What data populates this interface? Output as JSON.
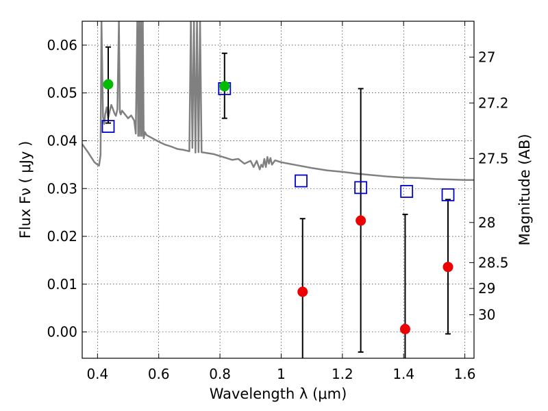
{
  "chart_data": {
    "type": "scatter",
    "xlabel": "Wavelength  λ (μm)",
    "ylabel": "Flux  Fν ( μJy )",
    "y2label": "Magnitude (AB)",
    "xlim": [
      0.35,
      1.63
    ],
    "ylim": [
      -0.0055,
      0.065
    ],
    "grid": true,
    "x_ticks": [
      0.4,
      0.6,
      0.8,
      1.0,
      1.2,
      1.4,
      1.6
    ],
    "x_tick_labels": [
      "0.4",
      "0.6",
      "0.8",
      "1",
      "1.2",
      "1.4",
      "1.6"
    ],
    "y_ticks": [
      0.0,
      0.01,
      0.02,
      0.03,
      0.04,
      0.05,
      0.06
    ],
    "y_tick_labels": [
      "0.00",
      "0.01",
      "0.02",
      "0.03",
      "0.04",
      "0.05",
      "0.06"
    ],
    "mag_ticks": [
      {
        "flux": 0.0575,
        "label": "27"
      },
      {
        "flux": 0.0479,
        "label": "27.2"
      },
      {
        "flux": 0.0363,
        "label": "27.5"
      },
      {
        "flux": 0.0229,
        "label": "28"
      },
      {
        "flux": 0.0145,
        "label": "28.5"
      },
      {
        "flux": 0.0091,
        "label": "29"
      },
      {
        "flux": 0.0036,
        "label": "30"
      }
    ],
    "series": [
      {
        "name": "model_spectrum",
        "kind": "line",
        "color": "#808080",
        "x": [
          0.35,
          0.37,
          0.39,
          0.4,
          0.405,
          0.41,
          0.413,
          0.418,
          0.422,
          0.425,
          0.43,
          0.435,
          0.44,
          0.445,
          0.45,
          0.455,
          0.46,
          0.465,
          0.47,
          0.473,
          0.476,
          0.48,
          0.49,
          0.5,
          0.51,
          0.52,
          0.525,
          0.53,
          0.533,
          0.536,
          0.539,
          0.542,
          0.545,
          0.548,
          0.551,
          0.555,
          0.56,
          0.58,
          0.6,
          0.62,
          0.64,
          0.66,
          0.68,
          0.7,
          0.705,
          0.71,
          0.715,
          0.72,
          0.725,
          0.73,
          0.735,
          0.74,
          0.75,
          0.78,
          0.8,
          0.82,
          0.84,
          0.86,
          0.88,
          0.9,
          0.91,
          0.92,
          0.93,
          0.935,
          0.94,
          0.945,
          0.95,
          0.955,
          0.96,
          0.965,
          0.97,
          0.98,
          1.0,
          1.05,
          1.1,
          1.15,
          1.2,
          1.25,
          1.3,
          1.35,
          1.4,
          1.45,
          1.5,
          1.55,
          1.6,
          1.63
        ],
        "y": [
          0.0393,
          0.0375,
          0.0355,
          0.035,
          0.0348,
          0.037,
          0.065,
          0.045,
          0.0435,
          0.0455,
          0.047,
          0.0448,
          0.0462,
          0.0475,
          0.0467,
          0.0458,
          0.0452,
          0.0466,
          0.065,
          0.046,
          0.0455,
          0.0463,
          0.0455,
          0.0447,
          0.0453,
          0.0442,
          0.0415,
          0.065,
          0.041,
          0.065,
          0.041,
          0.065,
          0.041,
          0.065,
          0.0405,
          0.0418,
          0.0412,
          0.0405,
          0.0398,
          0.0392,
          0.0388,
          0.0383,
          0.0381,
          0.0378,
          0.065,
          0.0385,
          0.065,
          0.0375,
          0.065,
          0.0376,
          0.065,
          0.0376,
          0.0375,
          0.0372,
          0.0368,
          0.0364,
          0.036,
          0.0362,
          0.0352,
          0.0358,
          0.0345,
          0.0358,
          0.034,
          0.035,
          0.0345,
          0.0362,
          0.0345,
          0.0366,
          0.0352,
          0.0364,
          0.035,
          0.0359,
          0.0355,
          0.0349,
          0.0343,
          0.0338,
          0.0335,
          0.0331,
          0.0328,
          0.0325,
          0.0323,
          0.0322,
          0.032,
          0.0319,
          0.0318,
          0.0318
        ]
      },
      {
        "name": "model_bandflux",
        "kind": "open_square",
        "color": "#0000cc",
        "x": [
          0.435,
          0.815,
          1.065,
          1.26,
          1.41,
          1.545
        ],
        "y": [
          0.043,
          0.0509,
          0.0316,
          0.0302,
          0.0294,
          0.0287
        ]
      },
      {
        "name": "detections",
        "kind": "filled_circle",
        "color": "#00bb00",
        "x": [
          0.435,
          0.815
        ],
        "y": [
          0.0518,
          0.0514
        ],
        "err_low": [
          0.0437,
          0.0447
        ],
        "err_high": [
          0.0596,
          0.0583
        ]
      },
      {
        "name": "nondetections",
        "kind": "filled_circle",
        "color": "#ee0000",
        "x": [
          1.07,
          1.26,
          1.405,
          1.545
        ],
        "y": [
          0.0084,
          0.0233,
          0.0006,
          0.0136
        ],
        "err_low": [
          -0.006,
          -0.0042,
          -0.006,
          -0.0004
        ],
        "err_high": [
          0.0237,
          0.0509,
          0.0246,
          0.0277
        ]
      }
    ]
  }
}
